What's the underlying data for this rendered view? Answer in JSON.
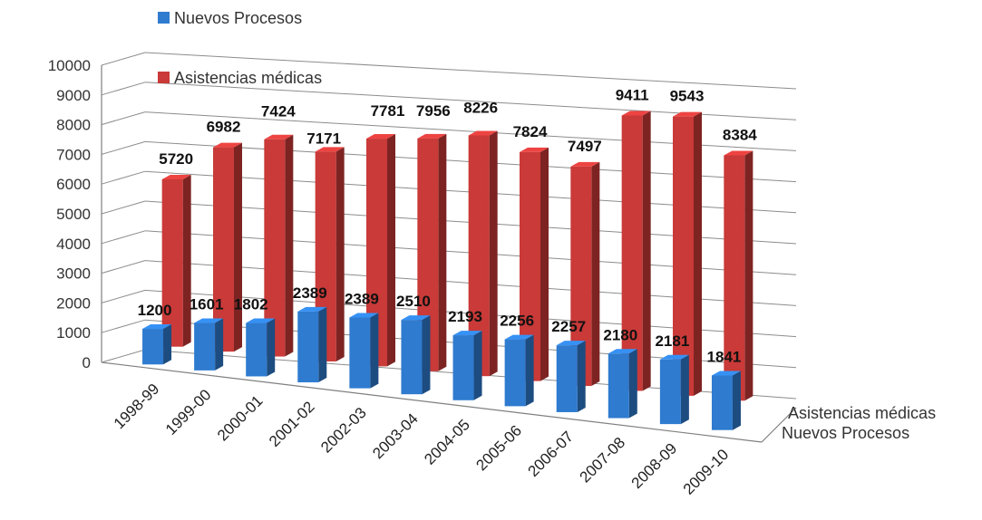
{
  "chart_data": {
    "type": "bar",
    "title": "",
    "xlabel": "",
    "ylabel": "",
    "ylim": [
      0,
      10000
    ],
    "yticks": [
      0,
      1000,
      2000,
      3000,
      4000,
      5000,
      6000,
      7000,
      8000,
      9000,
      10000
    ],
    "grid": true,
    "legend": "top-left",
    "categories": [
      "1998-99",
      "1999-00",
      "2000-01",
      "2001-02",
      "2002-03",
      "2003-04",
      "2004-05",
      "2005-06",
      "2006-07",
      "2007-08",
      "2008-09",
      "2009-10"
    ],
    "series": [
      {
        "name": "Nuevos Procesos",
        "color": "#2e7bcf",
        "values": [
          1200,
          1601,
          1802,
          2389,
          2389,
          2510,
          2193,
          2256,
          2257,
          2180,
          2181,
          1841
        ]
      },
      {
        "name": "Asistencias médicas",
        "color": "#c93a38",
        "values": [
          5720,
          6982,
          7424,
          7171,
          7781,
          7956,
          8226,
          7824,
          7497,
          9411,
          9543,
          8384
        ]
      }
    ]
  }
}
